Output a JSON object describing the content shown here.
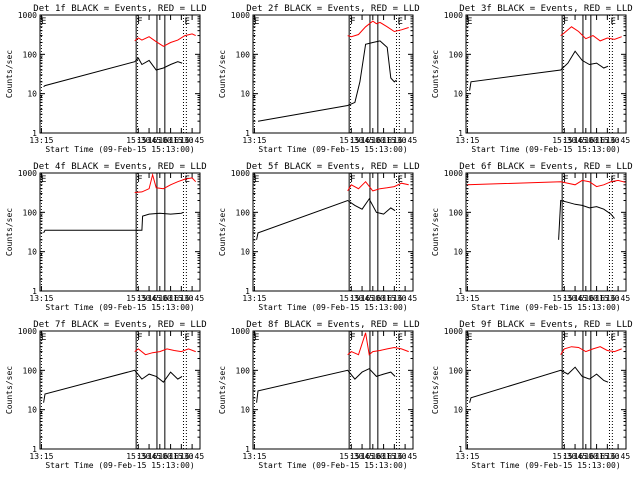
{
  "figure": {
    "colors": {
      "events": "#000000",
      "lld": "#ff0000",
      "axes": "#000000"
    },
    "y_axis": {
      "scale": "log",
      "ylim": [
        1,
        1000
      ],
      "tick_labels": [
        "1",
        "10",
        "100",
        "1000"
      ],
      "label": "Counts/sec"
    },
    "x_axis": {
      "xlim": [
        "13:13",
        "16:56"
      ],
      "tick_labels": [
        "13:15",
        "15:30",
        "15:45",
        "16:00",
        "16:15",
        "16:30",
        "16:45"
      ],
      "label": "Start Time (09-Feb-15 15:13:00)"
    }
  },
  "chart_data": [
    {
      "type": "line",
      "title": "Det 1f BLACK = Events, RED = LLD",
      "annotations": [
        {
          "text": "E",
          "x": "13:13"
        },
        {
          "text": "F",
          "x": "15:27"
        },
        {
          "text": "E",
          "x": "16:33"
        }
      ],
      "series": [
        {
          "name": "LLD",
          "color": "#ff0000",
          "x": [
            "15:25",
            "15:30",
            "15:35",
            "15:45",
            "15:55",
            "16:05",
            "16:15",
            "16:25",
            "16:35",
            "16:45",
            "16:50"
          ],
          "y": [
            220,
            260,
            230,
            280,
            210,
            160,
            200,
            230,
            300,
            330,
            300
          ]
        },
        {
          "name": "Events",
          "color": "#000000",
          "x": [
            "13:18",
            "13:20",
            "15:25",
            "15:30",
            "15:35",
            "15:45",
            "15:55",
            "16:05",
            "16:15",
            "16:25",
            "16:31"
          ],
          "y": [
            15,
            16,
            65,
            80,
            55,
            70,
            40,
            45,
            55,
            65,
            60
          ]
        }
      ]
    },
    {
      "type": "line",
      "title": "Det 2f BLACK = Events, RED = LLD",
      "annotations": [
        {
          "text": "E",
          "x": "13:13"
        },
        {
          "text": "F",
          "x": "15:27"
        },
        {
          "text": "E",
          "x": "16:33"
        }
      ],
      "series": [
        {
          "name": "LLD",
          "color": "#ff0000",
          "x": [
            "15:25",
            "15:30",
            "15:40",
            "15:50",
            "16:00",
            "16:05",
            "16:10",
            "16:20",
            "16:30",
            "16:40",
            "16:50"
          ],
          "y": [
            300,
            280,
            320,
            500,
            700,
            600,
            650,
            500,
            380,
            420,
            480
          ]
        },
        {
          "name": "Events",
          "color": "#000000",
          "x": [
            "13:20",
            "15:25",
            "15:35",
            "15:42",
            "15:50",
            "16:00",
            "16:10",
            "16:20",
            "16:25",
            "16:30",
            "16:33"
          ],
          "y": [
            2,
            5,
            6,
            20,
            180,
            200,
            220,
            150,
            25,
            20,
            22
          ]
        }
      ]
    },
    {
      "type": "line",
      "title": "Det 3f BLACK = Events, RED = LLD",
      "annotations": [
        {
          "text": "E",
          "x": "13:13"
        },
        {
          "text": "F",
          "x": "15:27"
        },
        {
          "text": "E",
          "x": "16:33"
        }
      ],
      "series": [
        {
          "name": "LLD",
          "color": "#ff0000",
          "x": [
            "15:25",
            "15:30",
            "15:40",
            "15:50",
            "16:00",
            "16:10",
            "16:20",
            "16:30",
            "16:40",
            "16:50"
          ],
          "y": [
            300,
            350,
            500,
            380,
            250,
            300,
            220,
            260,
            240,
            280
          ]
        },
        {
          "name": "Events",
          "color": "#000000",
          "x": [
            "13:18",
            "13:20",
            "15:25",
            "15:35",
            "15:45",
            "15:55",
            "16:05",
            "16:15",
            "16:25",
            "16:31"
          ],
          "y": [
            12,
            20,
            40,
            60,
            120,
            70,
            55,
            60,
            45,
            50
          ]
        }
      ]
    },
    {
      "type": "line",
      "title": "Det 4f BLACK = Events, RED = LLD",
      "annotations": [
        {
          "text": "E",
          "x": "13:13"
        },
        {
          "text": "F",
          "x": "15:27"
        },
        {
          "text": "E",
          "x": "16:33"
        }
      ],
      "series": [
        {
          "name": "LLD",
          "color": "#ff0000",
          "x": [
            "15:25",
            "15:35",
            "15:45",
            "15:50",
            "15:55",
            "16:05",
            "16:15",
            "16:25",
            "16:35",
            "16:45",
            "16:50"
          ],
          "y": [
            320,
            330,
            400,
            900,
            420,
            400,
            500,
            600,
            700,
            750,
            600
          ]
        },
        {
          "name": "Events",
          "color": "#000000",
          "x": [
            "13:18",
            "13:20",
            "15:25",
            "15:35",
            "15:36",
            "15:45",
            "16:00",
            "16:15",
            "16:30",
            "16:33"
          ],
          "y": [
            30,
            35,
            35,
            35,
            80,
            90,
            95,
            90,
            95,
            100
          ]
        }
      ]
    },
    {
      "type": "line",
      "title": "Det 5f BLACK = Events, RED = LLD",
      "annotations": [
        {
          "text": "E",
          "x": "13:13"
        },
        {
          "text": "F",
          "x": "15:27"
        },
        {
          "text": "E",
          "x": "16:33"
        }
      ],
      "series": [
        {
          "name": "LLD",
          "color": "#ff0000",
          "x": [
            "15:25",
            "15:30",
            "15:40",
            "15:50",
            "16:00",
            "16:10",
            "16:20",
            "16:30",
            "16:40",
            "16:50"
          ],
          "y": [
            350,
            500,
            400,
            600,
            350,
            400,
            420,
            450,
            550,
            500
          ]
        },
        {
          "name": "Events",
          "color": "#000000",
          "x": [
            "13:18",
            "13:20",
            "15:25",
            "15:35",
            "15:45",
            "15:55",
            "16:05",
            "16:15",
            "16:25",
            "16:31"
          ],
          "y": [
            20,
            30,
            200,
            150,
            120,
            220,
            100,
            90,
            130,
            110
          ]
        }
      ]
    },
    {
      "type": "line",
      "title": "Det 6f BLACK = Events, RED = LLD",
      "annotations": [
        {
          "text": "F",
          "x": "15:27"
        },
        {
          "text": "E",
          "x": "16:33"
        }
      ],
      "series": [
        {
          "name": "LLD",
          "color": "#ff0000",
          "x": [
            "13:15",
            "15:25",
            "15:35",
            "15:45",
            "15:55",
            "16:05",
            "16:15",
            "16:25",
            "16:35",
            "16:45",
            "16:55"
          ],
          "y": [
            500,
            600,
            550,
            500,
            650,
            600,
            450,
            500,
            600,
            650,
            580
          ]
        },
        {
          "name": "Events",
          "color": "#000000",
          "x": [
            "15:22",
            "15:25",
            "15:35",
            "15:45",
            "15:55",
            "16:05",
            "16:15",
            "16:25",
            "16:35",
            "16:40"
          ],
          "y": [
            20,
            200,
            180,
            160,
            150,
            130,
            140,
            120,
            90,
            70
          ]
        }
      ]
    },
    {
      "type": "line",
      "title": "Det 7f BLACK = Events, RED = LLD",
      "annotations": [
        {
          "text": "E",
          "x": "13:13"
        },
        {
          "text": "F",
          "x": "15:27"
        },
        {
          "text": "E",
          "x": "16:33"
        }
      ],
      "series": [
        {
          "name": "LLD",
          "color": "#ff0000",
          "x": [
            "15:25",
            "15:30",
            "15:40",
            "15:50",
            "16:00",
            "16:10",
            "16:20",
            "16:30",
            "16:40",
            "16:50"
          ],
          "y": [
            300,
            350,
            250,
            280,
            300,
            350,
            320,
            300,
            350,
            300
          ]
        },
        {
          "name": "Events",
          "color": "#000000",
          "x": [
            "13:18",
            "13:20",
            "15:25",
            "15:35",
            "15:45",
            "15:55",
            "16:05",
            "16:15",
            "16:25",
            "16:31"
          ],
          "y": [
            15,
            25,
            100,
            60,
            80,
            70,
            50,
            90,
            60,
            70
          ]
        }
      ]
    },
    {
      "type": "line",
      "title": "Det 8f BLACK = Events, RED = LLD",
      "annotations": [
        {
          "text": "E",
          "x": "13:13"
        },
        {
          "text": "F",
          "x": "15:27"
        },
        {
          "text": "E",
          "x": "16:33"
        }
      ],
      "series": [
        {
          "name": "LLD",
          "color": "#ff0000",
          "x": [
            "15:25",
            "15:30",
            "15:40",
            "15:50",
            "15:55",
            "16:00",
            "16:10",
            "16:20",
            "16:30",
            "16:40",
            "16:50"
          ],
          "y": [
            250,
            300,
            250,
            900,
            250,
            300,
            320,
            350,
            380,
            350,
            300
          ]
        },
        {
          "name": "Events",
          "color": "#000000",
          "x": [
            "13:18",
            "13:20",
            "15:25",
            "15:35",
            "15:45",
            "15:55",
            "16:05",
            "16:15",
            "16:25",
            "16:31"
          ],
          "y": [
            15,
            30,
            100,
            60,
            90,
            110,
            70,
            80,
            90,
            70
          ]
        }
      ]
    },
    {
      "type": "line",
      "title": "Det 9f BLACK = Events, RED = LLD",
      "annotations": [
        {
          "text": "E",
          "x": "13:13"
        },
        {
          "text": "F",
          "x": "15:27"
        },
        {
          "text": "E",
          "x": "16:33"
        }
      ],
      "series": [
        {
          "name": "LLD",
          "color": "#ff0000",
          "x": [
            "15:25",
            "15:30",
            "15:40",
            "15:50",
            "16:00",
            "16:10",
            "16:20",
            "16:30",
            "16:40",
            "16:50"
          ],
          "y": [
            250,
            350,
            400,
            380,
            300,
            350,
            400,
            320,
            300,
            350
          ]
        },
        {
          "name": "Events",
          "color": "#000000",
          "x": [
            "13:18",
            "13:20",
            "15:25",
            "15:35",
            "15:45",
            "15:55",
            "16:05",
            "16:15",
            "16:25",
            "16:31"
          ],
          "y": [
            15,
            20,
            100,
            80,
            120,
            70,
            60,
            80,
            55,
            50
          ]
        }
      ]
    }
  ]
}
